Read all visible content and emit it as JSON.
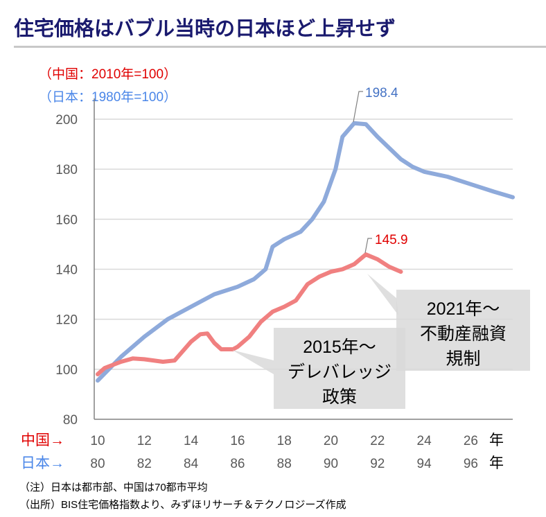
{
  "title": "住宅価格はバブル当時の日本ほど上昇せず",
  "notes": [
    "（注）日本は都市部、中国は70都市平均",
    "（出所）BIS住宅価格指数より、みずほリサーチ＆テクノロジーズ作成"
  ],
  "chart_data": {
    "type": "line",
    "index_labels": {
      "china": "（中国：2010年=100）",
      "japan": "（日本：1980年=100）"
    },
    "ylim": [
      80,
      200
    ],
    "yticks": [
      80,
      100,
      120,
      140,
      160,
      180,
      200
    ],
    "grid": true,
    "x_axis_rows": [
      {
        "label": "中国→",
        "ticks": [
          "10",
          "12",
          "14",
          "16",
          "18",
          "20",
          "22",
          "24",
          "26"
        ],
        "unit": "年",
        "color": "#e00000"
      },
      {
        "label": "日本→",
        "ticks": [
          "80",
          "82",
          "84",
          "86",
          "88",
          "90",
          "92",
          "94",
          "96"
        ],
        "unit": "年",
        "color": "#4a86e8"
      }
    ],
    "series": [
      {
        "name": "日本",
        "color": "#8eaadb",
        "x": [
          1980,
          1981,
          1982,
          1983,
          1984,
          1985,
          1986,
          1986.7,
          1987.2,
          1987.5,
          1988,
          1988.7,
          1989.2,
          1989.7,
          1990.2,
          1990.5,
          1991,
          1991.5,
          1992,
          1993,
          1993.5,
          1994,
          1995,
          1996,
          1997,
          1997.8
        ],
        "y": [
          95.5,
          105,
          113,
          120,
          125,
          130,
          133,
          136,
          140,
          149,
          152,
          155,
          160,
          167,
          180,
          193,
          198.4,
          198,
          193,
          184,
          181,
          179,
          177,
          174,
          171,
          168.8
        ]
      },
      {
        "name": "中国",
        "color": "#f08080",
        "x": [
          2010,
          2010.3,
          2011,
          2011.5,
          2012,
          2012.8,
          2013.3,
          2014,
          2014.4,
          2014.7,
          2015,
          2015.3,
          2015.8,
          2016,
          2016.5,
          2017,
          2017.5,
          2018,
          2018.5,
          2019,
          2019.5,
          2020,
          2020.5,
          2021,
          2021.5,
          2022,
          2022.5,
          2023
        ],
        "y": [
          98,
          100.5,
          103,
          104.3,
          104,
          103,
          103.5,
          111,
          114,
          114.3,
          110.5,
          108,
          108,
          109,
          113,
          119,
          123,
          125,
          127.5,
          134,
          137,
          139,
          140,
          142,
          145.9,
          144,
          141,
          139
        ]
      }
    ],
    "annotations": [
      {
        "text": "198.4",
        "series": "日本",
        "color": "#4472c4"
      },
      {
        "text": "145.9",
        "series": "中国",
        "color": "#e00000"
      },
      {
        "lines": [
          "2015年～",
          "デレバレッジ",
          "政策"
        ]
      },
      {
        "lines": [
          "2021年～",
          "不動産融資",
          "規制"
        ]
      }
    ]
  }
}
